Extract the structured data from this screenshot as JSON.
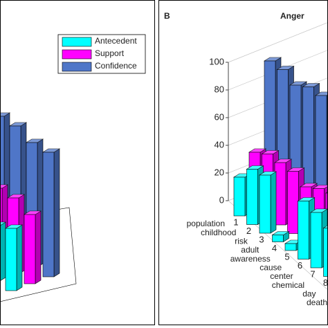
{
  "panel_b_label": "B",
  "chart_data": [
    {
      "type": "bar3d",
      "categories": [
        null,
        null,
        null,
        null
      ],
      "ylim": [
        0,
        100
      ],
      "legend": "upper right",
      "series": [
        {
          "name": "Antecedent",
          "color": "#00ffff",
          "values": [
            35,
            45,
            40,
            45
          ]
        },
        {
          "name": "Support",
          "color": "#ff00ff",
          "values": [
            60,
            55,
            55,
            50
          ]
        },
        {
          "name": "Confidence",
          "color": "#4f76c8",
          "values": [
            95,
            95,
            90,
            90
          ]
        }
      ]
    },
    {
      "type": "bar3d",
      "title": "Anger",
      "categories": [
        "1",
        "2",
        "3",
        "4",
        "5",
        "6",
        "7",
        "8"
      ],
      "depth_labels": [
        "population",
        "childhood",
        "risk",
        "adult",
        "awareness",
        "cause",
        "center",
        "chemical",
        "day",
        "death"
      ],
      "ylim": [
        0,
        100
      ],
      "yticks": [
        0,
        20,
        40,
        60,
        80,
        100
      ],
      "grid": true,
      "series": [
        {
          "color": "#00ffff",
          "values": [
            28,
            40,
            42,
            5,
            5,
            42,
            40,
            35
          ]
        },
        {
          "color": "#ff00ff",
          "values": [
            40,
            45,
            45,
            45,
            40,
            45,
            48,
            45
          ]
        },
        {
          "color": "#4f76c8",
          "values": [
            100,
            100,
            95,
            100,
            100,
            80,
            70,
            60
          ]
        }
      ]
    }
  ]
}
